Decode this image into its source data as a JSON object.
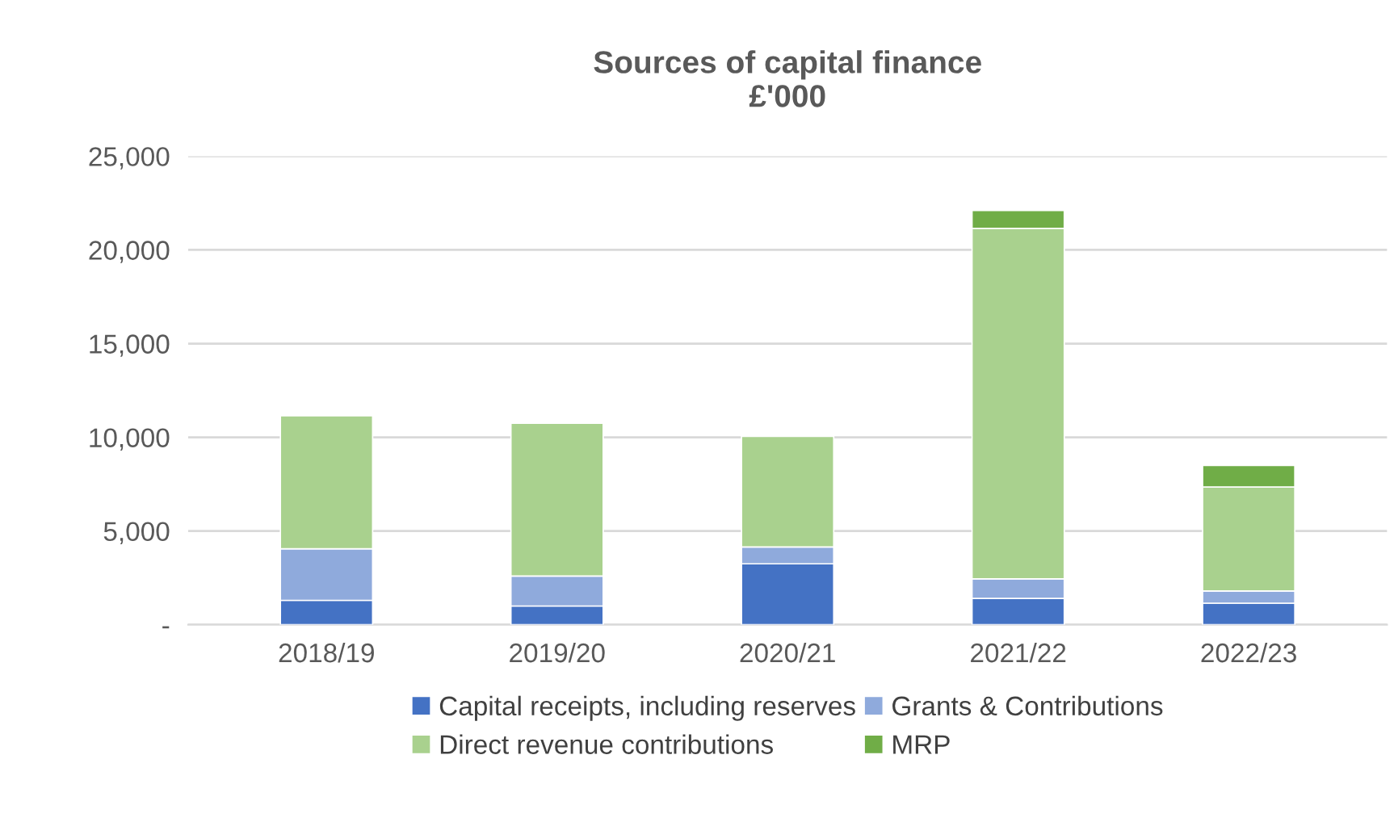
{
  "chart_data": {
    "type": "bar",
    "title": "Sources of capital finance\n£'000",
    "stacked": true,
    "categories": [
      "2018/19",
      "2019/20",
      "2020/21",
      "2021/22",
      "2022/23"
    ],
    "series": [
      {
        "name": "Capital receipts, including reserves",
        "color": "#4472c4",
        "values": [
          1300,
          1000,
          3250,
          1400,
          1150
        ]
      },
      {
        "name": "Grants & Contributions",
        "color": "#8faadc",
        "values": [
          2750,
          1600,
          900,
          1050,
          650
        ]
      },
      {
        "name": "Direct revenue contributions",
        "color": "#a9d18e",
        "values": [
          7100,
          8150,
          5900,
          18700,
          5550
        ]
      },
      {
        "name": "MRP",
        "color": "#70ad47",
        "values": [
          null,
          null,
          null,
          950,
          1150
        ]
      }
    ],
    "ylim": [
      0,
      25000
    ],
    "yticks": [
      {
        "value": 0,
        "label": "-"
      },
      {
        "value": 5000,
        "label": "5,000"
      },
      {
        "value": 10000,
        "label": "10,000"
      },
      {
        "value": 15000,
        "label": "15,000"
      },
      {
        "value": 20000,
        "label": "20,000"
      },
      {
        "value": 25000,
        "label": "25,000"
      }
    ],
    "grid": "y",
    "legend": "bottom"
  }
}
